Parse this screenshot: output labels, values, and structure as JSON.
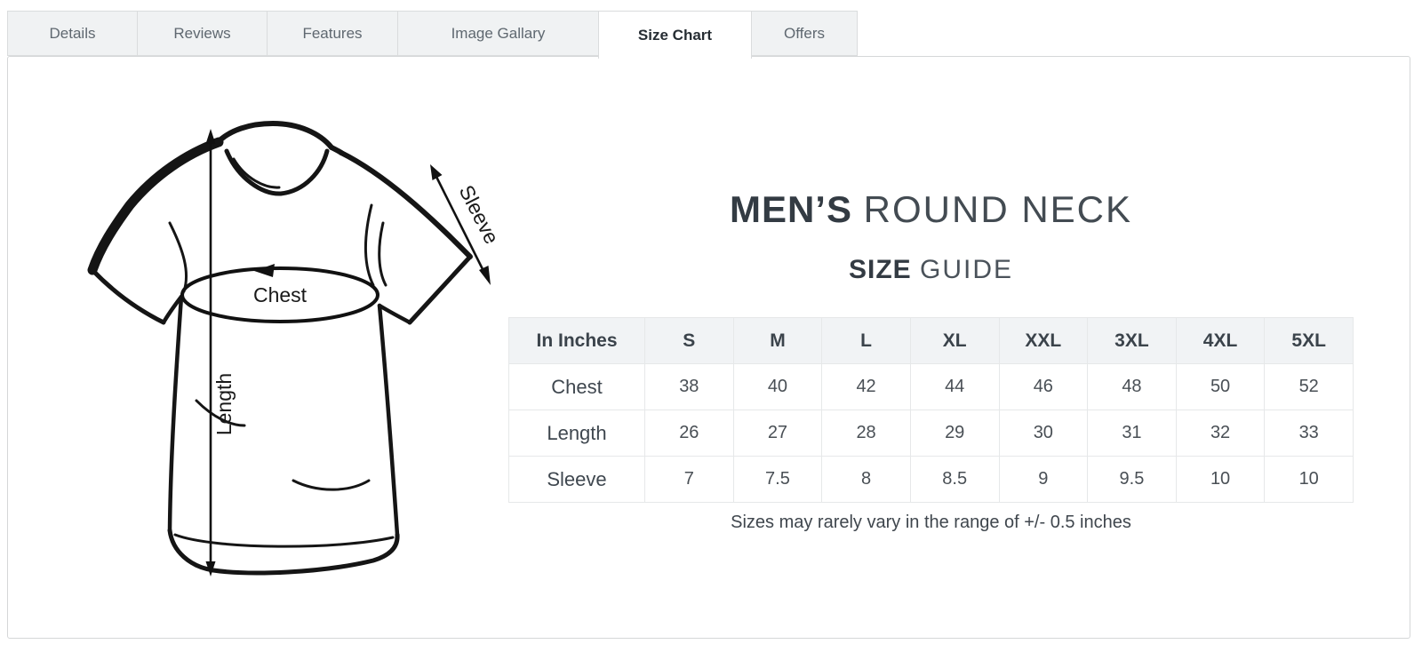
{
  "tabs": [
    {
      "label": "Details",
      "active": false
    },
    {
      "label": "Reviews",
      "active": false
    },
    {
      "label": "Features",
      "active": false
    },
    {
      "label": "Image Gallary",
      "active": false
    },
    {
      "label": "Size Chart",
      "active": true
    },
    {
      "label": "Offers",
      "active": false
    }
  ],
  "diagram": {
    "chest_label": "Chest",
    "length_label": "Length",
    "sleeve_label": "Sleeve"
  },
  "size_guide": {
    "title_bold": "MEN’S",
    "title_light": "ROUND NECK",
    "subtitle_bold": "SIZE",
    "subtitle_light": "GUIDE",
    "note": "Sizes may rarely vary in the range of +/- 0.5 inches"
  },
  "chart_data": {
    "type": "table",
    "title": "MEN’S ROUND NECK SIZE GUIDE",
    "unit": "In Inches",
    "columns": [
      "In Inches",
      "S",
      "M",
      "L",
      "XL",
      "XXL",
      "3XL",
      "4XL",
      "5XL"
    ],
    "rows": [
      {
        "label": "Chest",
        "values": [
          "38",
          "40",
          "42",
          "44",
          "46",
          "48",
          "50",
          "52"
        ]
      },
      {
        "label": "Length",
        "values": [
          "26",
          "27",
          "28",
          "29",
          "30",
          "31",
          "32",
          "33"
        ]
      },
      {
        "label": "Sleeve",
        "values": [
          "7",
          "7.5",
          "8",
          "8.5",
          "9",
          "9.5",
          "10",
          "10"
        ]
      }
    ]
  },
  "colors": {
    "tab_background": "#f0f2f3",
    "tab_border": "#dadcdd",
    "tab_text": "#5f6870",
    "active_tab_text": "#262d33",
    "panel_border": "#d5d7d8",
    "table_header_bg": "#f1f3f5",
    "table_border": "#e6e8e9",
    "heading_text": "#3a424a",
    "drawing_ink": "#151515"
  }
}
